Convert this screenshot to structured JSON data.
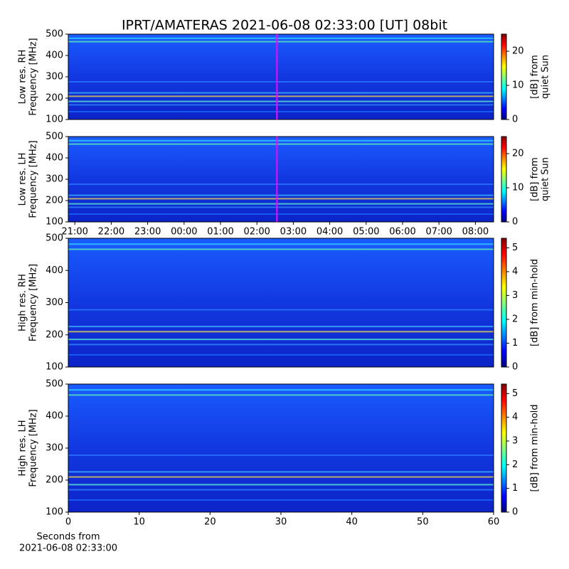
{
  "title": "IPRT/AMATERAS 2021-06-08 02:33:00 [UT]   08bit",
  "chart_data": [
    {
      "type": "heatmap",
      "ylabel": [
        "Low res. RH",
        "Frequency [MHz]"
      ],
      "ylim": [
        100,
        500
      ],
      "yticks": [
        100,
        200,
        300,
        400,
        500
      ],
      "xlim": [
        -3.18,
        8.5
      ],
      "marker": 2.55,
      "marker_color": "#ff00ff",
      "colorbar_label": [
        "[dB] from",
        "quiet Sun"
      ],
      "clim": [
        0,
        25
      ],
      "cticks": [
        0,
        10,
        20
      ]
    },
    {
      "type": "heatmap",
      "ylabel": [
        "Low res. LH",
        "Frequency [MHz]"
      ],
      "ylim": [
        100,
        500
      ],
      "yticks": [
        100,
        200,
        300,
        400,
        500
      ],
      "xlim": [
        -3.18,
        8.5
      ],
      "marker": 2.55,
      "marker_color": "#ff00ff",
      "xticks": [
        {
          "value": -3,
          "label": "21:00"
        },
        {
          "value": -2,
          "label": "22:00"
        },
        {
          "value": -1,
          "label": "23:00"
        },
        {
          "value": 0,
          "label": "00:00"
        },
        {
          "value": 1,
          "label": "01:00"
        },
        {
          "value": 2,
          "label": "02:00"
        },
        {
          "value": 3,
          "label": "03:00"
        },
        {
          "value": 4,
          "label": "04:00"
        },
        {
          "value": 5,
          "label": "05:00"
        },
        {
          "value": 6,
          "label": "06:00"
        },
        {
          "value": 7,
          "label": "07:00"
        },
        {
          "value": 8,
          "label": "08:00"
        }
      ],
      "colorbar_label": [
        "[dB] from",
        "quiet Sun"
      ],
      "clim": [
        0,
        25
      ],
      "cticks": [
        0,
        10,
        20
      ]
    },
    {
      "type": "heatmap",
      "ylabel": [
        "High res. RH",
        "Frequency [MHz]"
      ],
      "ylim": [
        100,
        500
      ],
      "yticks": [
        100,
        200,
        300,
        400,
        500
      ],
      "xlim": [
        0,
        60
      ],
      "colorbar_label": [
        "[dB] from min-hold"
      ],
      "clim": [
        0,
        5.4
      ],
      "cticks": [
        0,
        1,
        2,
        3,
        4,
        5
      ]
    },
    {
      "type": "heatmap",
      "ylabel": [
        "High res. LH",
        "Frequency [MHz]"
      ],
      "ylim": [
        100,
        500
      ],
      "yticks": [
        100,
        200,
        300,
        400,
        500
      ],
      "xlim": [
        0,
        60
      ],
      "xticks": [
        0,
        10,
        20,
        30,
        40,
        50,
        60
      ],
      "xlabel": [
        "Seconds from",
        "2021-06-08 02:33:00"
      ],
      "colorbar_label": [
        "[dB] from min-hold"
      ],
      "clim": [
        0,
        5.4
      ],
      "cticks": [
        0,
        1,
        2,
        3,
        4,
        5
      ]
    }
  ]
}
